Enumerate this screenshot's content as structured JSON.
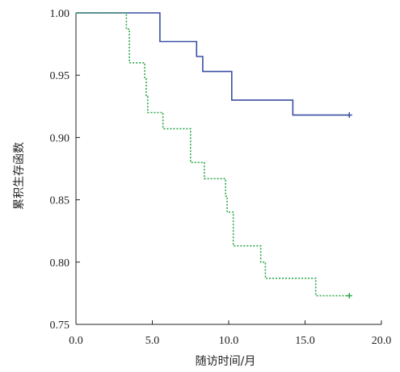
{
  "chart_data": {
    "type": "line",
    "subtype": "kaplan-meier-step",
    "xlabel": "随访时间/月",
    "ylabel": "累积生存函数",
    "xlim": [
      0,
      20
    ],
    "ylim": [
      0.75,
      1.0
    ],
    "x_ticks": [
      "0.0",
      "5.0",
      "10.0",
      "15.0",
      "20.0"
    ],
    "y_ticks": [
      "0.75",
      "0.80",
      "0.85",
      "0.90",
      "0.95",
      "1.00"
    ],
    "grid": false,
    "legend": "none",
    "series": [
      {
        "color": "#3a4fa0",
        "line_style": "solid",
        "points": [
          [
            0,
            1.0
          ],
          [
            5.5,
            1.0
          ],
          [
            5.5,
            0.977
          ],
          [
            7.9,
            0.977
          ],
          [
            7.9,
            0.965
          ],
          [
            8.3,
            0.965
          ],
          [
            8.3,
            0.953
          ],
          [
            10.2,
            0.953
          ],
          [
            10.2,
            0.93
          ],
          [
            14.2,
            0.93
          ],
          [
            14.2,
            0.918
          ],
          [
            17.9,
            0.918
          ]
        ],
        "censor_marks": [
          [
            17.9,
            0.918
          ]
        ]
      },
      {
        "color": "#2ea84a",
        "line_style": "dotted",
        "points": [
          [
            0,
            1.0
          ],
          [
            3.3,
            1.0
          ],
          [
            3.3,
            0.987
          ],
          [
            3.5,
            0.987
          ],
          [
            3.5,
            0.96
          ],
          [
            4.5,
            0.96
          ],
          [
            4.5,
            0.947
          ],
          [
            4.6,
            0.947
          ],
          [
            4.6,
            0.933
          ],
          [
            4.7,
            0.933
          ],
          [
            4.7,
            0.92
          ],
          [
            5.7,
            0.92
          ],
          [
            5.7,
            0.907
          ],
          [
            7.5,
            0.907
          ],
          [
            7.5,
            0.88
          ],
          [
            8.4,
            0.88
          ],
          [
            8.4,
            0.867
          ],
          [
            9.8,
            0.867
          ],
          [
            9.8,
            0.853
          ],
          [
            9.9,
            0.853
          ],
          [
            9.9,
            0.84
          ],
          [
            10.3,
            0.84
          ],
          [
            10.3,
            0.813
          ],
          [
            12.1,
            0.813
          ],
          [
            12.1,
            0.8
          ],
          [
            12.4,
            0.8
          ],
          [
            12.4,
            0.787
          ],
          [
            15.7,
            0.787
          ],
          [
            15.7,
            0.773
          ],
          [
            17.9,
            0.773
          ]
        ],
        "censor_marks": [
          [
            17.9,
            0.773
          ]
        ]
      }
    ]
  }
}
